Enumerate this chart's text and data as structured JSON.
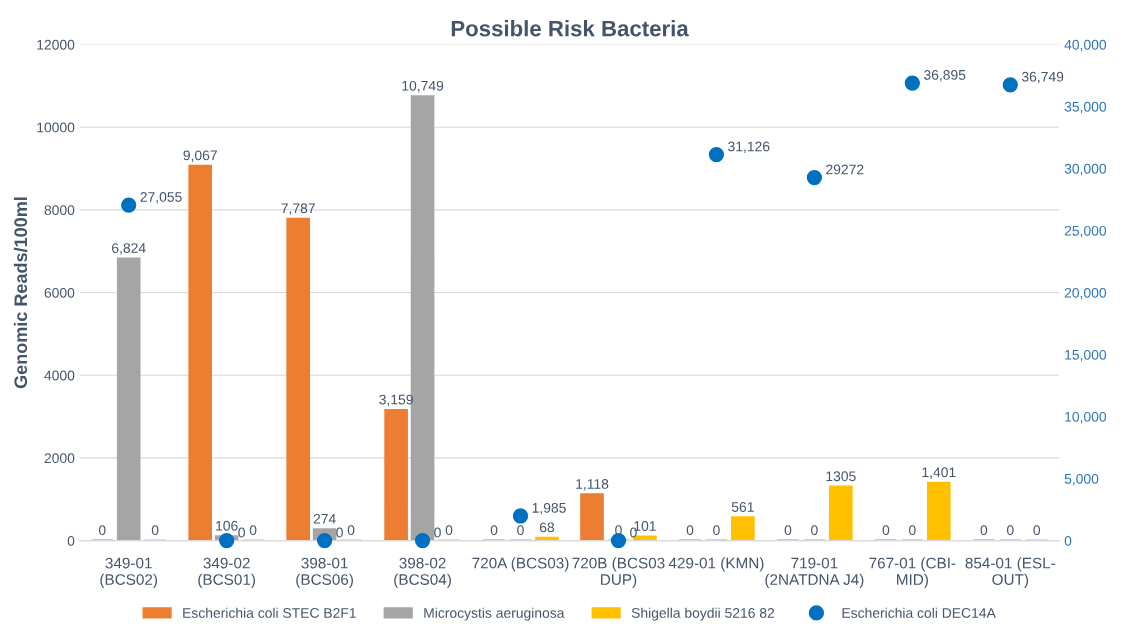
{
  "chart_data": {
    "type": "bar",
    "title": "Possible Risk Bacteria",
    "ylabel": "Genomic Reads/100ml",
    "categories": [
      "349-01\n(BCS02)",
      "349-02\n(BCS01)",
      "398-01\n(BCS06)",
      "398-02\n(BCS04)",
      "720A (BCS03)",
      "720B (BCS03\nDUP)",
      "429-01 (KMN)",
      "719-01\n(2NATDNA J4)",
      "767-01 (CBI-\nMID)",
      "854-01 (ESL-\nOUT)"
    ],
    "series": [
      {
        "name": "Escherichia coli STEC B2F1",
        "color": "#ed7d31",
        "values": [
          0,
          9067,
          7787,
          3159,
          0,
          1118,
          0,
          0,
          0,
          0
        ],
        "value_labels": [
          "0",
          "9,067",
          "7,787",
          "3,159",
          "0",
          "1,118",
          "0",
          "0",
          "0",
          "0"
        ]
      },
      {
        "name": "Microcystis aeruginosa",
        "color": "#a5a5a5",
        "values": [
          6824,
          106,
          274,
          10749,
          0,
          0,
          0,
          0,
          0,
          0
        ],
        "value_labels": [
          "6,824",
          "106",
          "274",
          "10,749",
          "0",
          "0",
          "0",
          "0",
          "0",
          "0"
        ]
      },
      {
        "name": "Shigella boydii 5216 82",
        "color": "#ffc000",
        "values": [
          0,
          0,
          0,
          0,
          68,
          101,
          561,
          1305,
          1401,
          0
        ],
        "value_labels": [
          "0",
          "0",
          "0",
          "0",
          "68",
          "101",
          "561",
          "1305",
          "1,401",
          "0"
        ]
      },
      {
        "name": "Escherichia coli DEC14A",
        "color": "#0070c0",
        "type": "scatter",
        "axis": "y2",
        "marker": "circle",
        "values": [
          27055,
          0,
          0,
          0,
          1985,
          0,
          31126,
          29272,
          36895,
          36749
        ],
        "value_labels": [
          "27,055",
          "0",
          "0",
          "0",
          "1,985",
          "0",
          "31,126",
          "29272",
          "36,895",
          "36,749"
        ]
      }
    ],
    "ylim": [
      0,
      12000
    ],
    "yticks": [
      0,
      2000,
      4000,
      6000,
      8000,
      10000,
      12000
    ],
    "y2lim": [
      0,
      40000
    ],
    "y2ticks": [
      {
        "value": 0,
        "label": "0"
      },
      {
        "value": 5000,
        "label": "5,000"
      },
      {
        "value": 10000,
        "label": "10,000"
      },
      {
        "value": 15000,
        "label": "15,000"
      },
      {
        "value": 20000,
        "label": "20,000"
      },
      {
        "value": 25000,
        "label": "25,000"
      },
      {
        "value": 30000,
        "label": "30,000"
      },
      {
        "value": 35000,
        "label": "35,000"
      },
      {
        "value": 40000,
        "label": "40,000"
      }
    ],
    "grid": "y",
    "legend": "bottom"
  }
}
